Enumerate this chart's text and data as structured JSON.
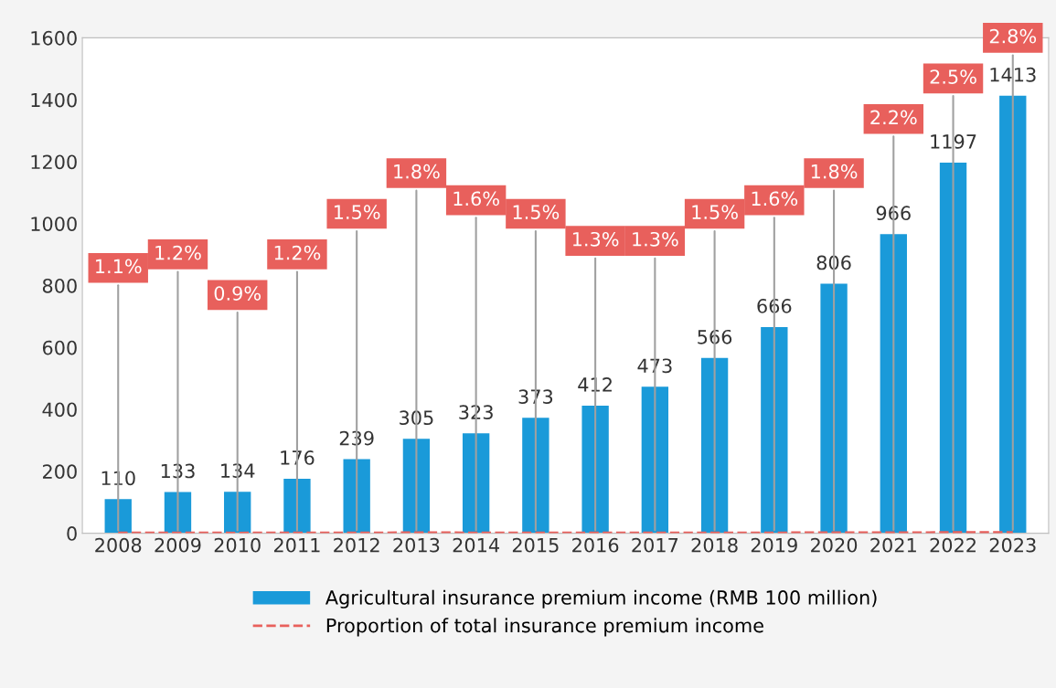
{
  "chart_data": {
    "type": "bar",
    "categories": [
      "2008",
      "2009",
      "2010",
      "2011",
      "2012",
      "2013",
      "2014",
      "2015",
      "2016",
      "2017",
      "2018",
      "2019",
      "2020",
      "2021",
      "2022",
      "2023"
    ],
    "series": [
      {
        "name": "Agricultural insurance premium income (RMB 100 million)",
        "color": "#1a9ad9",
        "values": [
          110,
          133,
          134,
          176,
          239,
          305,
          323,
          373,
          412,
          473,
          566,
          666,
          806,
          966,
          1197,
          1413
        ]
      },
      {
        "name": "Proportion of total insurance premium income",
        "type": "line",
        "color": "#e8605c",
        "line_style": "dashed",
        "marker": "none",
        "values": [
          1.1,
          1.2,
          0.9,
          1.2,
          1.5,
          1.8,
          1.6,
          1.5,
          1.3,
          1.3,
          1.5,
          1.6,
          1.8,
          2.2,
          2.5,
          2.8
        ],
        "value_labels": [
          "1.1%",
          "1.2%",
          "0.9%",
          "1.2%",
          "1.5%",
          "1.8%",
          "1.6%",
          "1.5%",
          "1.3%",
          "1.3%",
          "1.5%",
          "1.6%",
          "1.8%",
          "2.2%",
          "2.5%",
          "2.8%"
        ]
      }
    ],
    "data_labels": true,
    "ylim": [
      0,
      1600
    ],
    "yticks": [
      0,
      200,
      400,
      600,
      800,
      1000,
      1200,
      1400,
      1600
    ],
    "grid": false,
    "legend": "bottom"
  }
}
